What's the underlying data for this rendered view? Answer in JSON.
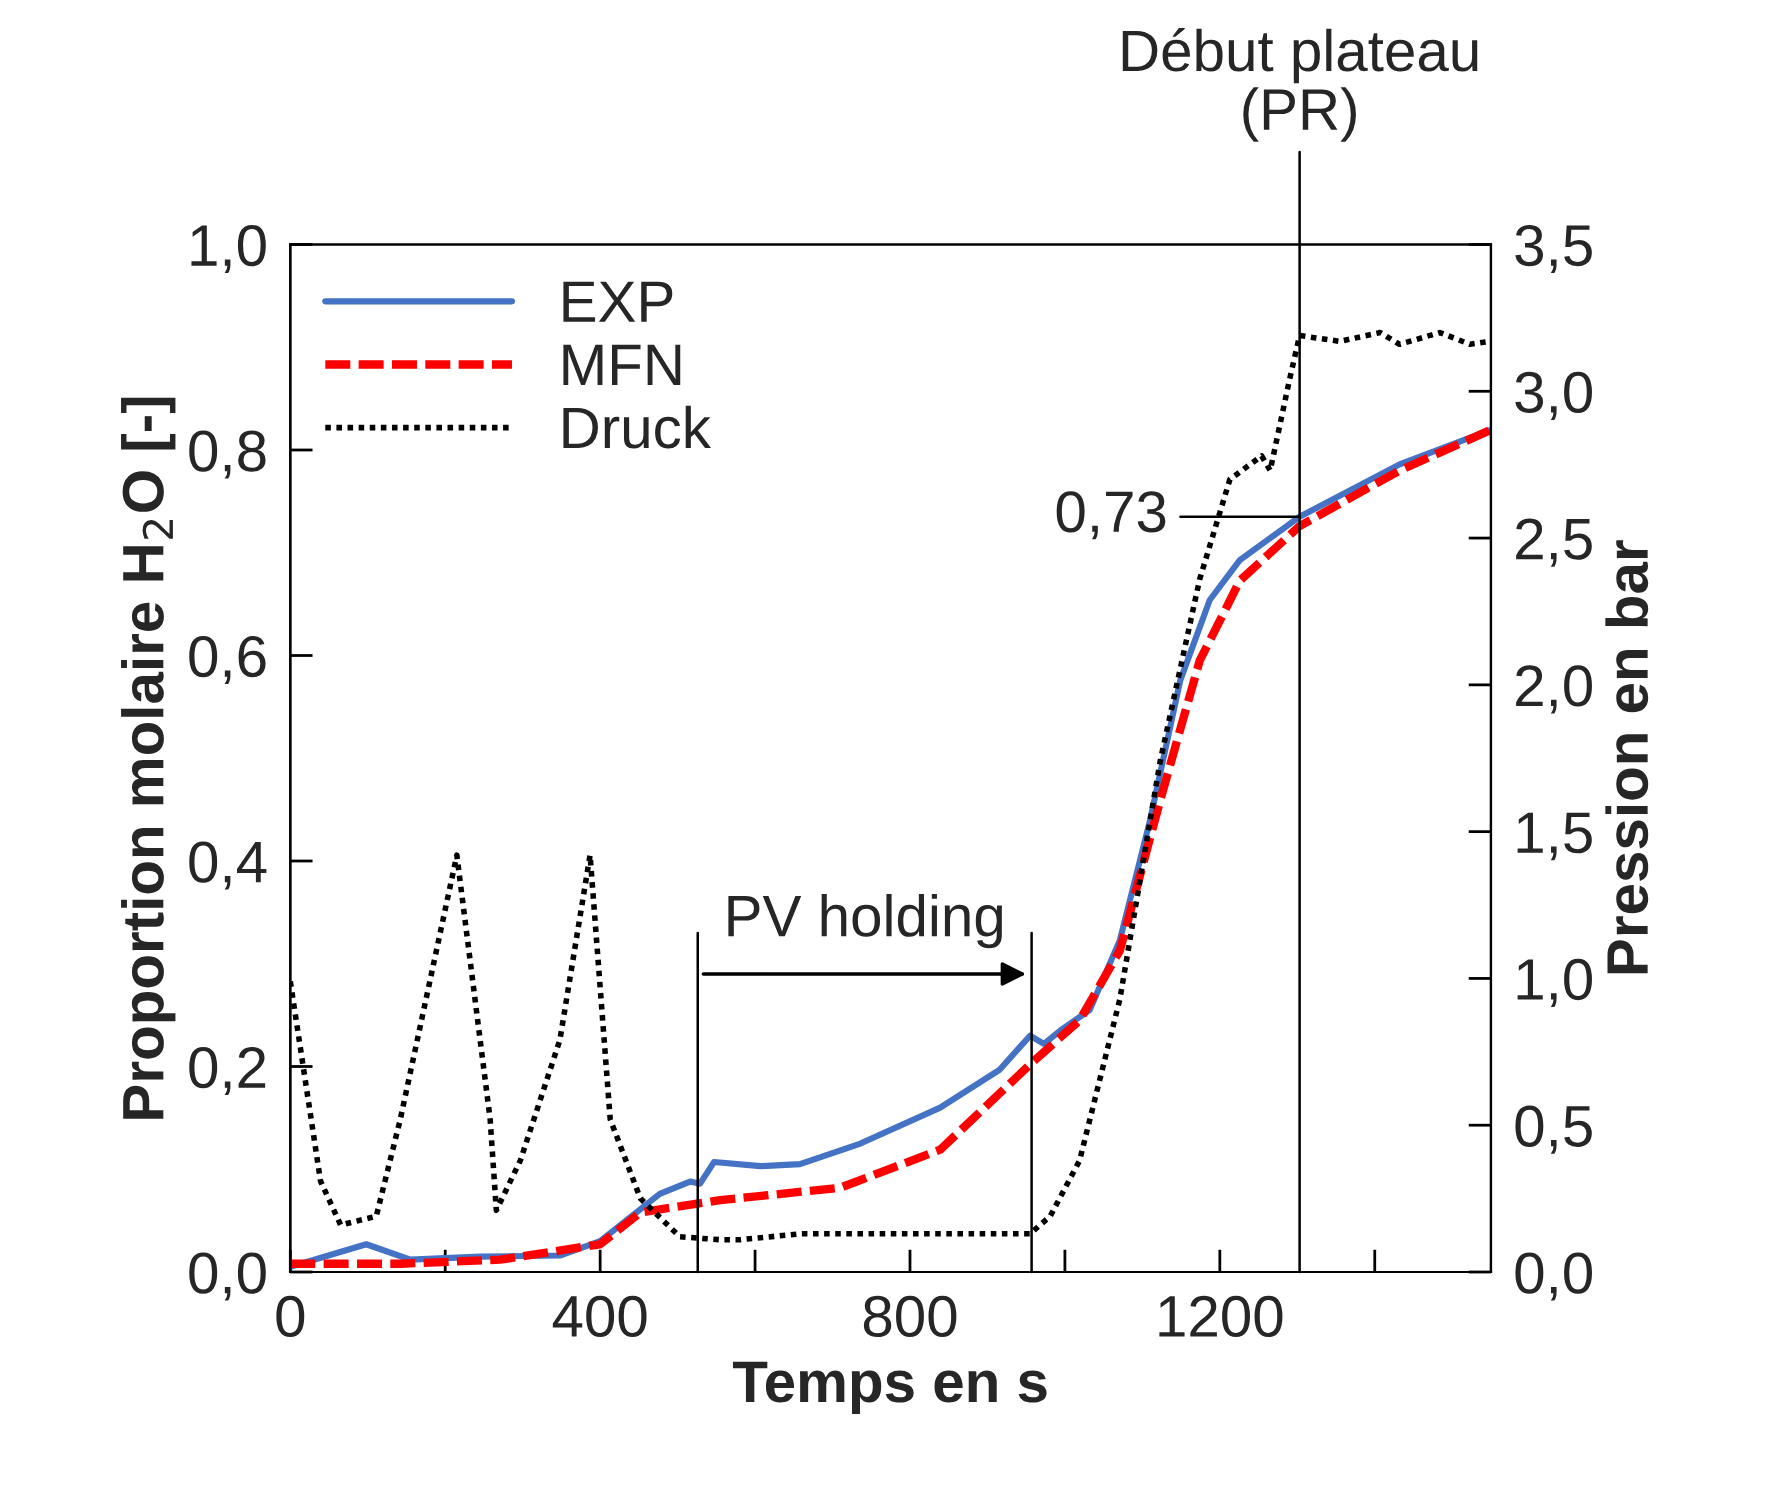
{
  "chart_data": {
    "type": "line",
    "xlabel": "Temps en s",
    "ylabel": "Proportion molaire H$_{2}$O [-]",
    "y2label": "Pression en bar",
    "xlim": [
      0,
      1550
    ],
    "xticks": [
      0,
      {
        "value": 200,
        "label": null
      },
      400,
      {
        "value": 600,
        "label": null
      },
      800,
      {
        "value": 1000,
        "label": null
      },
      1200,
      {
        "value": 1400,
        "label": null
      }
    ],
    "ylim": [
      0,
      1
    ],
    "yticks": [
      {
        "value": 0,
        "label": "0,0"
      },
      {
        "value": 0.2,
        "label": "0,2"
      },
      {
        "value": 0.4,
        "label": "0,4"
      },
      {
        "value": 0.6,
        "label": "0,6"
      },
      {
        "value": 0.8,
        "label": "0,8"
      },
      {
        "value": 1,
        "label": "1,0"
      }
    ],
    "y2lim": [
      0,
      3.5
    ],
    "y2ticks": [
      {
        "value": 0,
        "label": "0,0"
      },
      {
        "value": 0.5,
        "label": "0,5"
      },
      {
        "value": 1,
        "label": "1,0"
      },
      {
        "value": 1.5,
        "label": "1,5"
      },
      {
        "value": 2,
        "label": "2,0"
      },
      {
        "value": 2.5,
        "label": "2,5"
      },
      {
        "value": 3,
        "label": "3,0"
      },
      {
        "value": 3.5,
        "label": "3,5"
      }
    ],
    "legend": "top left",
    "grid": false,
    "series": [
      {
        "name": "EXP",
        "color": "#4472c4",
        "line_style": "solid",
        "x": [
          0,
          98,
          155,
          245,
          348,
          400,
          477,
          516,
          529,
          547,
          607,
          658,
          736,
          839,
          916,
          955,
          973,
          994,
          1032,
          1071,
          1110,
          1149,
          1187,
          1226,
          1303,
          1432,
          1548
        ],
        "values": [
          0.005,
          0.027,
          0.012,
          0.015,
          0.016,
          0.03,
          0.076,
          0.088,
          0.086,
          0.107,
          0.103,
          0.105,
          0.125,
          0.16,
          0.197,
          0.23,
          0.222,
          0.235,
          0.255,
          0.323,
          0.44,
          0.576,
          0.654,
          0.693,
          0.735,
          0.786,
          0.819
        ]
      },
      {
        "name": "MFN",
        "color": "#ff0000",
        "line_style": "dashed",
        "x": [
          0,
          142,
          271,
          400,
          452,
          555,
          710,
          839,
          955,
          1019,
          1071,
          1123,
          1174,
          1226,
          1303,
          1432,
          1548
        ],
        "values": [
          0.008,
          0.008,
          0.012,
          0.027,
          0.058,
          0.07,
          0.082,
          0.119,
          0.202,
          0.245,
          0.313,
          0.459,
          0.595,
          0.673,
          0.726,
          0.78,
          0.819
        ]
      },
      {
        "name": "Druck",
        "color": "#000000",
        "line_style": "dotted",
        "axis": "y2",
        "x": [
          0,
          39,
          65,
          111,
          142,
          215,
          258,
          266,
          297,
          348,
          387,
          413,
          452,
          503,
          555,
          581,
          658,
          916,
          955,
          981,
          1019,
          1071,
          1123,
          1174,
          1213,
          1254,
          1265,
          1290,
          1303,
          1355,
          1407,
          1432,
          1484,
          1523,
          1548
        ],
        "values": [
          0.99,
          0.31,
          0.16,
          0.19,
          0.52,
          1.42,
          0.52,
          0.21,
          0.38,
          0.79,
          1.42,
          0.52,
          0.25,
          0.12,
          0.11,
          0.11,
          0.13,
          0.13,
          0.13,
          0.19,
          0.38,
          0.93,
          1.74,
          2.36,
          2.7,
          2.78,
          2.73,
          3.04,
          3.19,
          3.17,
          3.2,
          3.16,
          3.2,
          3.16,
          3.17
        ]
      }
    ],
    "ref_lines": [
      {
        "axis": "x",
        "value": 526,
        "color": "#000000"
      },
      {
        "axis": "x",
        "value": 957,
        "color": "#000000"
      },
      {
        "axis": "x",
        "value": 1303,
        "label": "Début plateau\n(PR)",
        "color": "#000000"
      }
    ],
    "annotations": [
      "PV holding",
      {
        "text": "0,73",
        "x": 1303,
        "y": 0.735
      }
    ]
  }
}
